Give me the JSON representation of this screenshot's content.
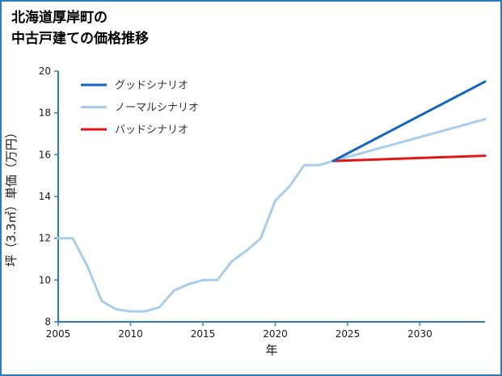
{
  "title": {
    "line1": "北海道厚岸町の",
    "line2": "中古戸建ての価格推移"
  },
  "colors": {
    "frame": "#2d7bc0",
    "axis": "#2d7bc0",
    "text": "#1a1a1a",
    "good_scenario": "#1266bd",
    "normal_scenario": "#a9cdec",
    "bad_scenario": "#e01616"
  },
  "chart_data": {
    "type": "line",
    "title": "北海道厚岸町の中古戸建ての価格推移",
    "xlabel": "年",
    "ylabel": "坪（3.3㎡）単価（万円）",
    "xlim": [
      2005,
      2034.5
    ],
    "ylim": [
      8,
      20
    ],
    "xticks": [
      2005,
      2010,
      2015,
      2020,
      2025,
      2030
    ],
    "yticks": [
      8,
      10,
      12,
      14,
      16,
      18,
      20
    ],
    "grid": false,
    "legend_position": "upper-left",
    "series": [
      {
        "key": "good-scenario",
        "name": "グッドシナリオ",
        "color": "#1266bd",
        "width": 3,
        "x": [
          2024,
          2034.5
        ],
        "y": [
          15.7,
          19.5
        ]
      },
      {
        "key": "normal-scenario",
        "name": "ノーマルシナリオ",
        "color": "#a9cdec",
        "width": 3,
        "x": [
          2005,
          2006,
          2007,
          2008,
          2009,
          2010,
          2011,
          2012,
          2013,
          2014,
          2015,
          2016,
          2017,
          2018,
          2019,
          2020,
          2021,
          2022,
          2023,
          2024,
          2034.5
        ],
        "y": [
          12.0,
          12.0,
          10.7,
          9.0,
          8.6,
          8.5,
          8.5,
          8.7,
          9.5,
          9.8,
          10.0,
          10.0,
          10.9,
          11.4,
          12.0,
          13.8,
          14.5,
          15.5,
          15.5,
          15.7,
          17.7
        ]
      },
      {
        "key": "bad-scenario",
        "name": "バッドシナリオ",
        "color": "#e01616",
        "width": 3,
        "x": [
          2024,
          2034.5
        ],
        "y": [
          15.7,
          15.95
        ]
      }
    ]
  }
}
